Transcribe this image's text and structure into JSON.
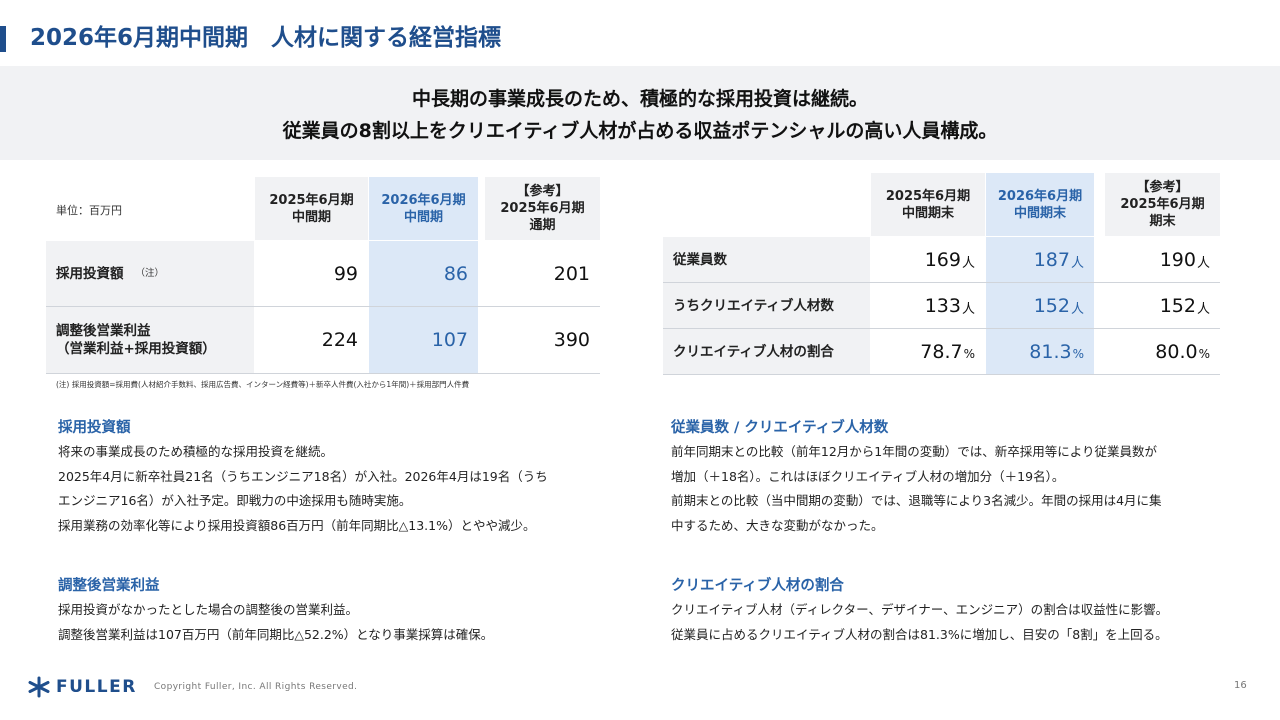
{
  "header": {
    "title": "2026年6月期中間期　人材に関する経営指標"
  },
  "lead": {
    "line1": "中長期の事業成長のため、積極的な採用投資は継続。",
    "line2": "従業員の8割以上をクリエイティブ人材が占める収益ポテンシャルの高い人員構成。"
  },
  "left_table": {
    "unit_label": "単位：百万円",
    "col1_line1": "2025年6月期",
    "col1_line2": "中間期",
    "col2_line1": "2026年6月期",
    "col2_line2": "中間期",
    "col3_line1": "【参考】",
    "col3_line2": "2025年6月期",
    "col3_line3": "通期",
    "row1_label": "採用投資額",
    "row1_note": "（注）",
    "row1_v1": "99",
    "row1_v2": "86",
    "row1_v3": "201",
    "row2_label1": "調整後営業利益",
    "row2_label2": "（営業利益+採用投資額）",
    "row2_v1": "224",
    "row2_v2": "107",
    "row2_v3": "390",
    "footnote": "(注) 採用投資額=採用費(人材紹介手数料、採用広告費、インターン経費等)＋新卒人件費(入社から1年間)＋採用部門人件費"
  },
  "right_table": {
    "col1_line1": "2025年6月期",
    "col1_line2": "中間期末",
    "col2_line1": "2026年6月期",
    "col2_line2": "中間期末",
    "col3_line1": "【参考】",
    "col3_line2": "2025年6月期",
    "col3_line3": "期末",
    "row1_label": "従業員数",
    "row1_v1": "169",
    "row1_v2": "187",
    "row1_v3": "190",
    "row2_label": "うちクリエイティブ人材数",
    "row2_v1": "133",
    "row2_v2": "152",
    "row2_v3": "152",
    "row3_label": "クリエイティブ人材の割合",
    "row3_v1": "78.7",
    "row3_v2": "81.3",
    "row3_v3": "80.0",
    "unit_person": "人",
    "unit_percent": "%"
  },
  "sections": {
    "hiring_title": "採用投資額",
    "hiring_l1": "将来の事業成長のため積極的な採用投資を継続。",
    "hiring_l2": "2025年4月に新卒社員21名（うちエンジニア18名）が入社。2026年4月は19名（うち",
    "hiring_l3": "エンジニア16名）が入社予定。即戦力の中途採用も随時実施。",
    "hiring_l4": "採用業務の効率化等により採用投資額86百万円（前年同期比△13.1%）とやや減少。",
    "profit_title": "調整後営業利益",
    "profit_l1": "採用投資がなかったとした場合の調整後の営業利益。",
    "profit_l2": "調整後営業利益は107百万円（前年同期比△52.2%）となり事業採算は確保。",
    "staff_title": "従業員数 / クリエイティブ人材数",
    "staff_l1": "前年同期末との比較（前年12月から1年間の変動）では、新卒採用等により従業員数が",
    "staff_l2": "増加（＋18名）。これはほぼクリエイティブ人材の増加分（＋19名）。",
    "staff_l3": "前期末との比較（当中間期の変動）では、退職等により3名減少。年間の採用は4月に集",
    "staff_l4": "中するため、大きな変動がなかった。",
    "ratio_title": "クリエイティブ人材の割合",
    "ratio_l1": "クリエイティブ人材（ディレクター、デザイナー、エンジニア）の割合は収益性に影響。",
    "ratio_l2": "従業員に占めるクリエイティブ人材の割合は81.3%に増加し、目安の「8割」を上回る。"
  },
  "footer": {
    "logo": "FULLER",
    "logo_icon": "fuller-logo-icon",
    "copyright": "Copyright Fuller, Inc. All Rights Reserved.",
    "page": "16"
  },
  "colors": {
    "accent": "#1f4e8c",
    "highlight_text": "#2a63a8",
    "highlight_bg": "#dce8f7",
    "header_bg": "#f1f2f4"
  }
}
